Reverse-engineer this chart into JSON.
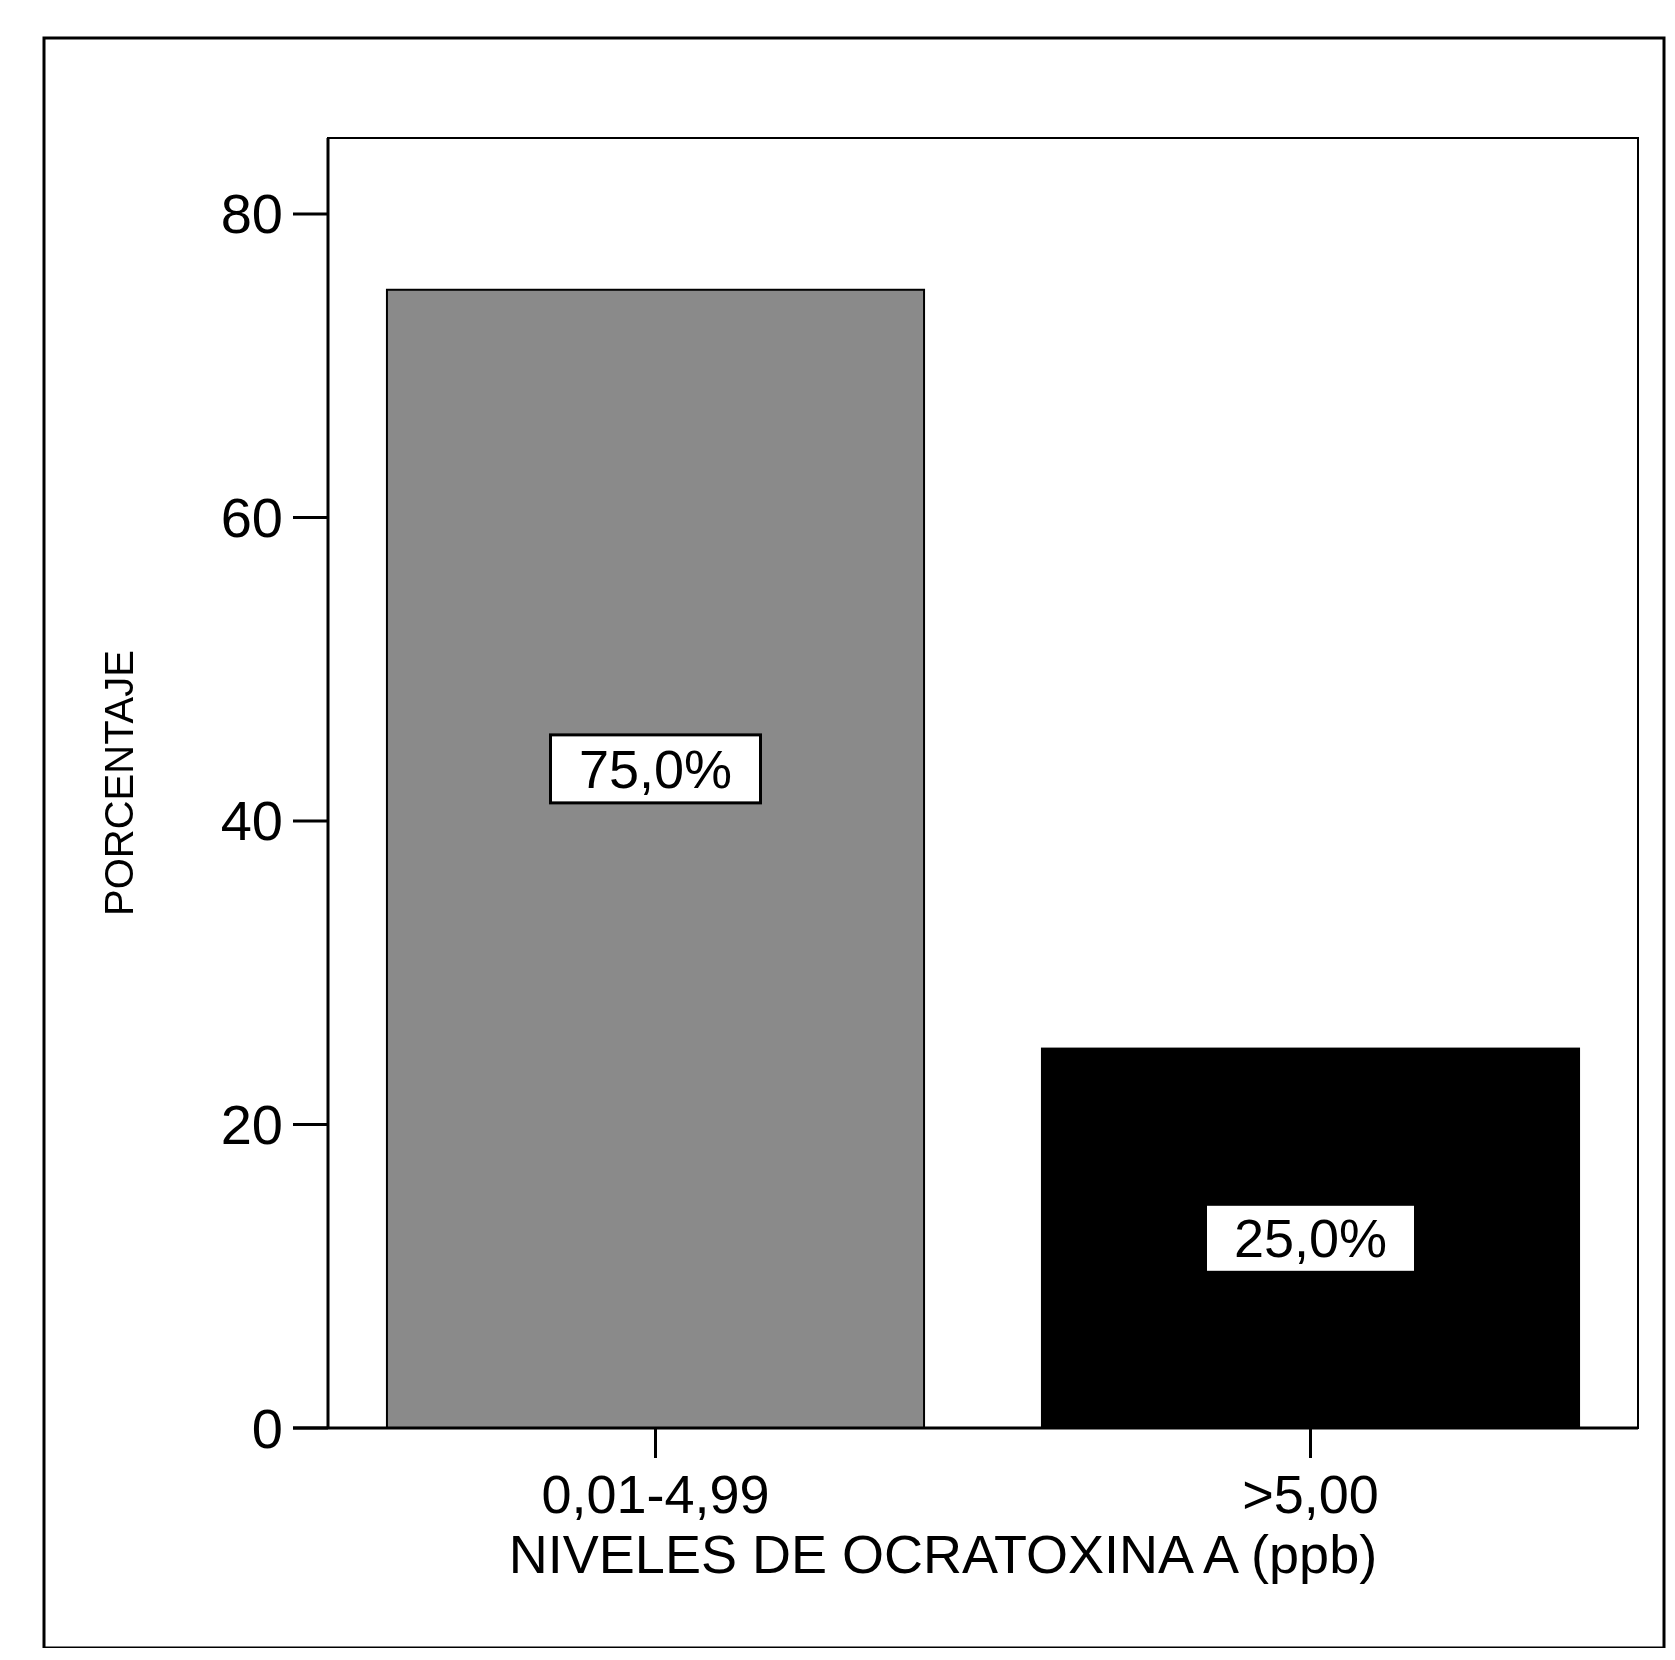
{
  "chart_data": {
    "type": "bar",
    "xlabel": "NIVELES DE OCRATOXINA A (ppb)",
    "ylabel": "PORCENTAJE",
    "categories": [
      "0,01-4,99",
      ">5,00"
    ],
    "values": [
      75.0,
      25.0
    ],
    "colors": [
      "#8a8a8a",
      "#000000"
    ],
    "value_labels": [
      "75,0%",
      "25,0%"
    ],
    "ylim": [
      0,
      85
    ],
    "yticks": [
      0,
      20,
      40,
      60,
      80
    ],
    "grid": false
  }
}
